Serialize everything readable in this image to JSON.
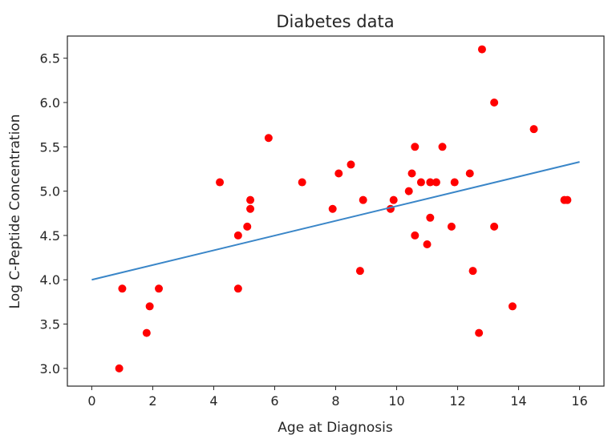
{
  "chart_data": {
    "type": "scatter",
    "title": "Diabetes data",
    "xlabel": "Age at Diagnosis",
    "ylabel": "Log C-Peptide Concentration",
    "xlim": [
      -0.8,
      16.8
    ],
    "ylim": [
      2.8,
      6.75
    ],
    "xticks": [
      0,
      2,
      4,
      6,
      8,
      10,
      12,
      14,
      16
    ],
    "yticks": [
      3.0,
      3.5,
      4.0,
      4.5,
      5.0,
      5.5,
      6.0,
      6.5
    ],
    "ytick_labels": [
      "3.0",
      "3.5",
      "4.0",
      "4.5",
      "5.0",
      "5.5",
      "6.0",
      "6.5"
    ],
    "grid": false,
    "colors": {
      "points": "#ff0000",
      "line": "#3a86c8",
      "axes": "#262626"
    },
    "series": [
      {
        "type": "scatter",
        "points": [
          [
            0.9,
            3.0
          ],
          [
            1.0,
            3.9
          ],
          [
            1.8,
            3.4
          ],
          [
            1.9,
            3.7
          ],
          [
            2.2,
            3.9
          ],
          [
            4.2,
            5.1
          ],
          [
            4.8,
            4.5
          ],
          [
            4.8,
            3.9
          ],
          [
            5.1,
            4.6
          ],
          [
            5.2,
            4.9
          ],
          [
            5.2,
            4.8
          ],
          [
            5.8,
            5.6
          ],
          [
            6.9,
            5.1
          ],
          [
            7.9,
            4.8
          ],
          [
            8.1,
            5.2
          ],
          [
            8.5,
            5.3
          ],
          [
            8.8,
            4.1
          ],
          [
            8.9,
            4.9
          ],
          [
            9.8,
            4.8
          ],
          [
            9.9,
            4.9
          ],
          [
            10.4,
            5.0
          ],
          [
            10.5,
            5.2
          ],
          [
            10.6,
            5.5
          ],
          [
            10.6,
            4.5
          ],
          [
            10.8,
            5.1
          ],
          [
            11.0,
            4.4
          ],
          [
            11.1,
            5.1
          ],
          [
            11.1,
            4.7
          ],
          [
            11.3,
            5.1
          ],
          [
            11.5,
            5.5
          ],
          [
            11.8,
            4.6
          ],
          [
            11.9,
            5.1
          ],
          [
            12.4,
            5.2
          ],
          [
            12.5,
            4.1
          ],
          [
            12.7,
            3.4
          ],
          [
            12.8,
            6.6
          ],
          [
            13.2,
            6.0
          ],
          [
            13.2,
            4.6
          ],
          [
            13.8,
            3.7
          ],
          [
            14.5,
            5.7
          ],
          [
            15.5,
            4.9
          ],
          [
            15.6,
            4.9
          ]
        ]
      },
      {
        "type": "line",
        "points": [
          [
            0,
            4.0
          ],
          [
            16,
            5.33
          ]
        ]
      }
    ]
  }
}
